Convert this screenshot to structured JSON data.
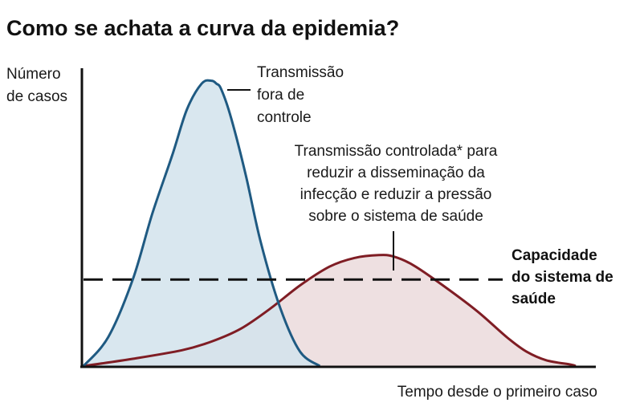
{
  "title": "Como se achata a curva da epidemia?",
  "chart_data": {
    "type": "area",
    "title": "Como se achata a curva da epidemia?",
    "xlabel": "Tempo desde o primeiro caso",
    "ylabel": [
      "Número",
      "de casos"
    ],
    "xlim": [
      0,
      100
    ],
    "ylim": [
      0,
      100
    ],
    "grid": false,
    "legend": "none",
    "series": [
      {
        "name": [
          "Transmissão",
          "fora de",
          "controle"
        ],
        "color": "#1f5a82",
        "fill": "#d2e3ec",
        "x": [
          0,
          5,
          10,
          14,
          18,
          21,
          24,
          26,
          27,
          28,
          30,
          33,
          36,
          40,
          44,
          48
        ],
        "y": [
          0,
          10,
          30,
          53,
          73,
          89,
          98,
          99,
          98,
          96,
          86,
          66,
          43,
          20,
          5,
          0
        ]
      },
      {
        "name": [
          "Transmissão controlada* para",
          "reduzir a disseminação da",
          "infecção e reduzir a pressão",
          "sobre o sistema de saúde"
        ],
        "color": "#7f1d24",
        "fill": "#ead8d9",
        "x": [
          0,
          10,
          20,
          26,
          32,
          38,
          44,
          50,
          55,
          60,
          63,
          67,
          73,
          80,
          86,
          90,
          94,
          99,
          100
        ],
        "y": [
          0,
          2.5,
          5.5,
          8.5,
          13,
          20,
          28,
          34.5,
          37.5,
          38.5,
          38,
          35,
          28,
          19,
          10,
          5,
          2,
          0.5,
          0
        ]
      }
    ],
    "reference_line": {
      "label": [
        "Capacidade",
        "do sistema de",
        "saúde"
      ],
      "y": 30,
      "style": "dashed"
    }
  }
}
